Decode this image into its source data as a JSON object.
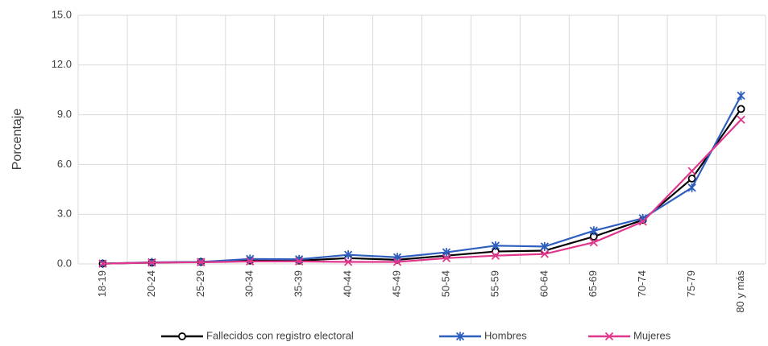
{
  "chart_data": {
    "type": "line",
    "y_label": "Porcentaje",
    "categories": [
      "18-19",
      "20-24",
      "25-29",
      "30-34",
      "35-39",
      "40-44",
      "45-49",
      "50-54",
      "55-59",
      "60-64",
      "65-69",
      "70-74",
      "75-79",
      "80 y más"
    ],
    "series": [
      {
        "name": "Fallecidos con registro electoral",
        "color": "#000000",
        "marker": "circle",
        "values": [
          0.02,
          0.08,
          0.12,
          0.2,
          0.2,
          0.35,
          0.25,
          0.5,
          0.75,
          0.8,
          1.65,
          2.65,
          5.15,
          9.35
        ]
      },
      {
        "name": "Hombres",
        "color": "#2e5fbf",
        "marker": "star",
        "values": [
          0.02,
          0.1,
          0.12,
          0.3,
          0.28,
          0.55,
          0.4,
          0.7,
          1.1,
          1.05,
          2.0,
          2.75,
          4.6,
          10.15
        ]
      },
      {
        "name": "Mujeres",
        "color": "#e0368c",
        "marker": "x",
        "values": [
          0.02,
          0.08,
          0.1,
          0.15,
          0.15,
          0.12,
          0.12,
          0.35,
          0.5,
          0.6,
          1.3,
          2.55,
          5.6,
          8.7
        ]
      }
    ],
    "ylim": [
      0,
      15
    ],
    "yticks": [
      {
        "value": 0,
        "label": "0.0"
      },
      {
        "value": 3,
        "label": "3.0"
      },
      {
        "value": 6,
        "label": "6.0"
      },
      {
        "value": 9,
        "label": "9.0"
      },
      {
        "value": 12,
        "label": "12.0"
      },
      {
        "value": 15,
        "label": "15.0"
      }
    ],
    "grid": true
  }
}
